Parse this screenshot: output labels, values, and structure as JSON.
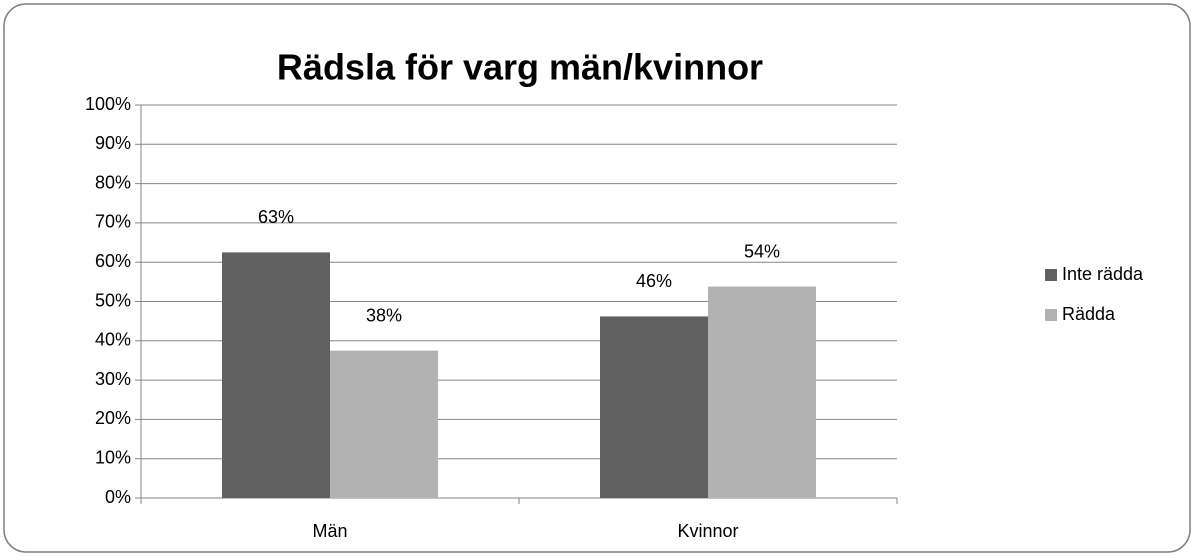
{
  "chart_data": {
    "type": "bar",
    "title": "Rädsla för varg män/kvinnor",
    "categories": [
      "Män",
      "Kvinnor"
    ],
    "series": [
      {
        "name": "Inte rädda",
        "color": "#606060",
        "values": [
          62.5,
          46.2
        ],
        "value_labels": [
          "63%",
          "46%"
        ]
      },
      {
        "name": "Rädda",
        "color": "#b2b2b2",
        "values": [
          37.5,
          53.8
        ],
        "value_labels": [
          "38%",
          "54%"
        ]
      }
    ],
    "ylim": [
      0,
      100
    ],
    "yticks": [
      {
        "value": 0,
        "label": "0%"
      },
      {
        "value": 10,
        "label": "10%"
      },
      {
        "value": 20,
        "label": "20%"
      },
      {
        "value": 30,
        "label": "30%"
      },
      {
        "value": 40,
        "label": "40%"
      },
      {
        "value": 50,
        "label": "50%"
      },
      {
        "value": 60,
        "label": "60%"
      },
      {
        "value": 70,
        "label": "70%"
      },
      {
        "value": 80,
        "label": "80%"
      },
      {
        "value": 90,
        "label": "90%"
      },
      {
        "value": 100,
        "label": "100%"
      }
    ],
    "grid": true,
    "legend": "right"
  }
}
